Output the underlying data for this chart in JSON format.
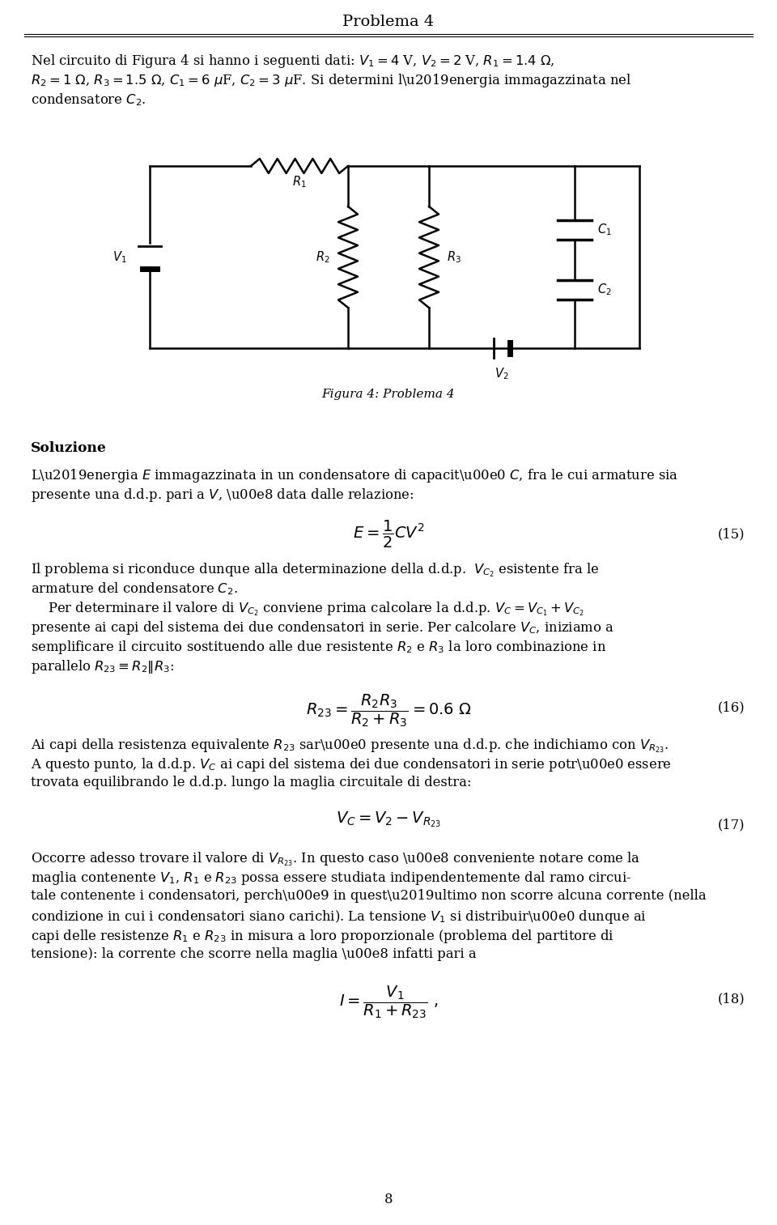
{
  "title": "Problema 4",
  "bg_color": "#ffffff",
  "text_color": "#000000",
  "fig_width": 9.6,
  "fig_height": 15.13,
  "intro_text_line1": "Nel circuito di Figura 4 si hanno i seguenti dati:\\: $V_1 = 4$ V, $V_2 = 2$ V, $R_1 = 1.4$ Ω,",
  "intro_text_line2": "$R_2 = 1$ Ω, $R_3 = 1.5$ Ω, $C_1 = 6$ μF, $C_2 = 3$ μF. Si determini l’energia immagazzinata nel",
  "intro_text_line3": "condensatore $C_2$.",
  "fig_caption": "Figura 4: Problema 4",
  "section_soluzione": "Soluzione",
  "sol_line1": "L’energia $E$ immagazzinata in un condensatore di capacità $C$, fra le cui armature sia",
  "sol_line2": "presente una d.d.p. pari a $V$, è data dalle relazione:",
  "eq15_num": "(15)",
  "sol_line3": "Il problema si riconduce dunque alla determinazione della d.d.p.\\: $V_{C_2}$ esistente fra le",
  "sol_line4": "armature del condensatore $C_2$.",
  "sol_line5": "\\quad Per determinare il valore di $V_{C_2}$ conviene prima calcolare la d.d.p.\\: $V_C = V_{C_1} + V_{C_2}$",
  "sol_line6": "presente ai capi del sistema dei due condensatori in serie.\\: Per calcolare $V_C$, iniziamo a",
  "sol_line7": "semplificare il circuito sostituendo alle due resistente $R_2$ e $R_3$ la loro combinazione in",
  "sol_line8": "parallelo $R_{23} \\equiv R_2 \\| R_3$:",
  "eq16_num": "(16)",
  "sol_line9": "Ai capi della resistenza equivalente $R_{23}$ sarà presente una d.d.p. che indichiamo con $V_{R_{23}}$.",
  "sol_line10": "A questo punto, la d.d.p. $V_C$ ai capi del sistema dei due condensatori in serie potrà essere",
  "sol_line11": "trovata equilibrando le d.d.p. lungo la maglia circuitale di destra:",
  "eq17_num": "(17)",
  "sol_line12": "Occorre adesso trovare il valore di $V_{R_{23}}$.\\: In questo caso è conveniente notare come la",
  "sol_line13": "maglia contenente $V_1$, $R_1$ e $R_{23}$ possa essere studiata indipendentemente dal ramo circui-",
  "sol_line14": "tale contenente i condensatori, perché in quest’ultimo non scorre alcuna corrente (nella",
  "sol_line15": "condizione in cui i condensatori siano carichi).\\: La tensione $V_1$ si distribuirà dunque ai",
  "sol_line16": "capi delle resistenze $R_1$ e $R_{23}$ in misura a loro proporzionale (problema del partitore di",
  "sol_line17": "tensione): la corrente che scorre nella maglia è infatti pari a",
  "eq18_num": "(18)",
  "page_num": "8"
}
